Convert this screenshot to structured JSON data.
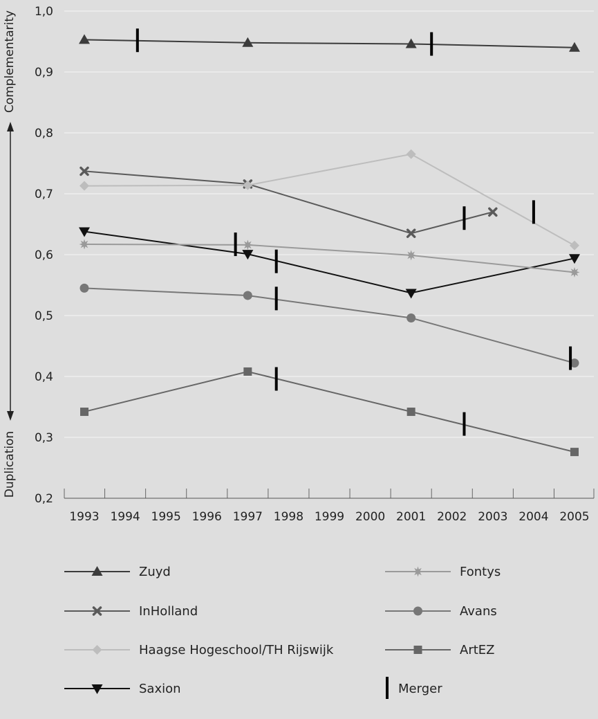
{
  "chart_data": {
    "type": "line",
    "x": [
      1993,
      1994,
      1995,
      1996,
      1997,
      1998,
      1999,
      2000,
      2001,
      2002,
      2003,
      2004,
      2005
    ],
    "x_tick_labels": [
      "1993",
      "1994",
      "1995",
      "1996",
      "1997",
      "1998",
      "1999",
      "2000",
      "2001",
      "2002",
      "2003",
      "2004",
      "2005"
    ],
    "ylim": [
      0.2,
      1.0
    ],
    "y_ticks": [
      0.2,
      0.3,
      0.4,
      0.5,
      0.6,
      0.7,
      0.8,
      0.9,
      1.0
    ],
    "y_tick_labels": [
      "0,2",
      "0,3",
      "0,4",
      "0,5",
      "0,6",
      "0,7",
      "0,8",
      "0,9",
      "1,0"
    ],
    "ylabel_top": "Complementarity",
    "ylabel_bottom": "Duplication",
    "grid": "horizontal",
    "legend_position": "bottom",
    "series": [
      {
        "name": "Zuyd",
        "marker": "triangle-up",
        "color": "#3c3c3c",
        "points": [
          [
            1993,
            0.953
          ],
          [
            1997,
            0.948
          ],
          [
            2001,
            0.946
          ],
          [
            2005,
            0.94
          ]
        ],
        "mergers": [
          [
            1994.3,
            0.952
          ],
          [
            2001.5,
            0.946
          ]
        ]
      },
      {
        "name": "InHolland",
        "marker": "x",
        "color": "#5a5a5a",
        "points": [
          [
            1993,
            0.737
          ],
          [
            1997,
            0.716
          ],
          [
            2001,
            0.635
          ],
          [
            2003,
            0.67
          ]
        ],
        "mergers": [
          [
            2002.3,
            0.66
          ],
          [
            2004,
            0.67
          ]
        ]
      },
      {
        "name": "Haagse Hogeschool/TH Rijswijk",
        "marker": "diamond",
        "color": "#bdbdbd",
        "points": [
          [
            1993,
            0.713
          ],
          [
            1997,
            0.714
          ],
          [
            2001,
            0.765
          ],
          [
            2005,
            0.615
          ]
        ],
        "mergers": []
      },
      {
        "name": "Saxion",
        "marker": "triangle-down",
        "color": "#111111",
        "points": [
          [
            1993,
            0.638
          ],
          [
            1997,
            0.601
          ],
          [
            2001,
            0.537
          ],
          [
            2005,
            0.594
          ]
        ],
        "mergers": [
          [
            1996.7,
            0.617
          ],
          [
            1997.7,
            0.589
          ]
        ]
      },
      {
        "name": "Fontys",
        "marker": "star",
        "color": "#9a9a9a",
        "points": [
          [
            1993,
            0.617
          ],
          [
            1997,
            0.616
          ],
          [
            2001,
            0.599
          ],
          [
            2005,
            0.571
          ]
        ],
        "mergers": []
      },
      {
        "name": "Avans",
        "marker": "circle",
        "color": "#777777",
        "points": [
          [
            1993,
            0.545
          ],
          [
            1997,
            0.533
          ],
          [
            2001,
            0.496
          ],
          [
            2005,
            0.422
          ]
        ],
        "mergers": [
          [
            1997.7,
            0.528
          ],
          [
            2004.9,
            0.43
          ]
        ]
      },
      {
        "name": "ArtEZ",
        "marker": "square",
        "color": "#666666",
        "points": [
          [
            1993,
            0.342
          ],
          [
            1997,
            0.408
          ],
          [
            2001,
            0.342
          ],
          [
            2005,
            0.276
          ]
        ],
        "mergers": [
          [
            1997.7,
            0.396
          ],
          [
            2002.3,
            0.322
          ]
        ]
      }
    ],
    "merger_label": "Merger"
  }
}
